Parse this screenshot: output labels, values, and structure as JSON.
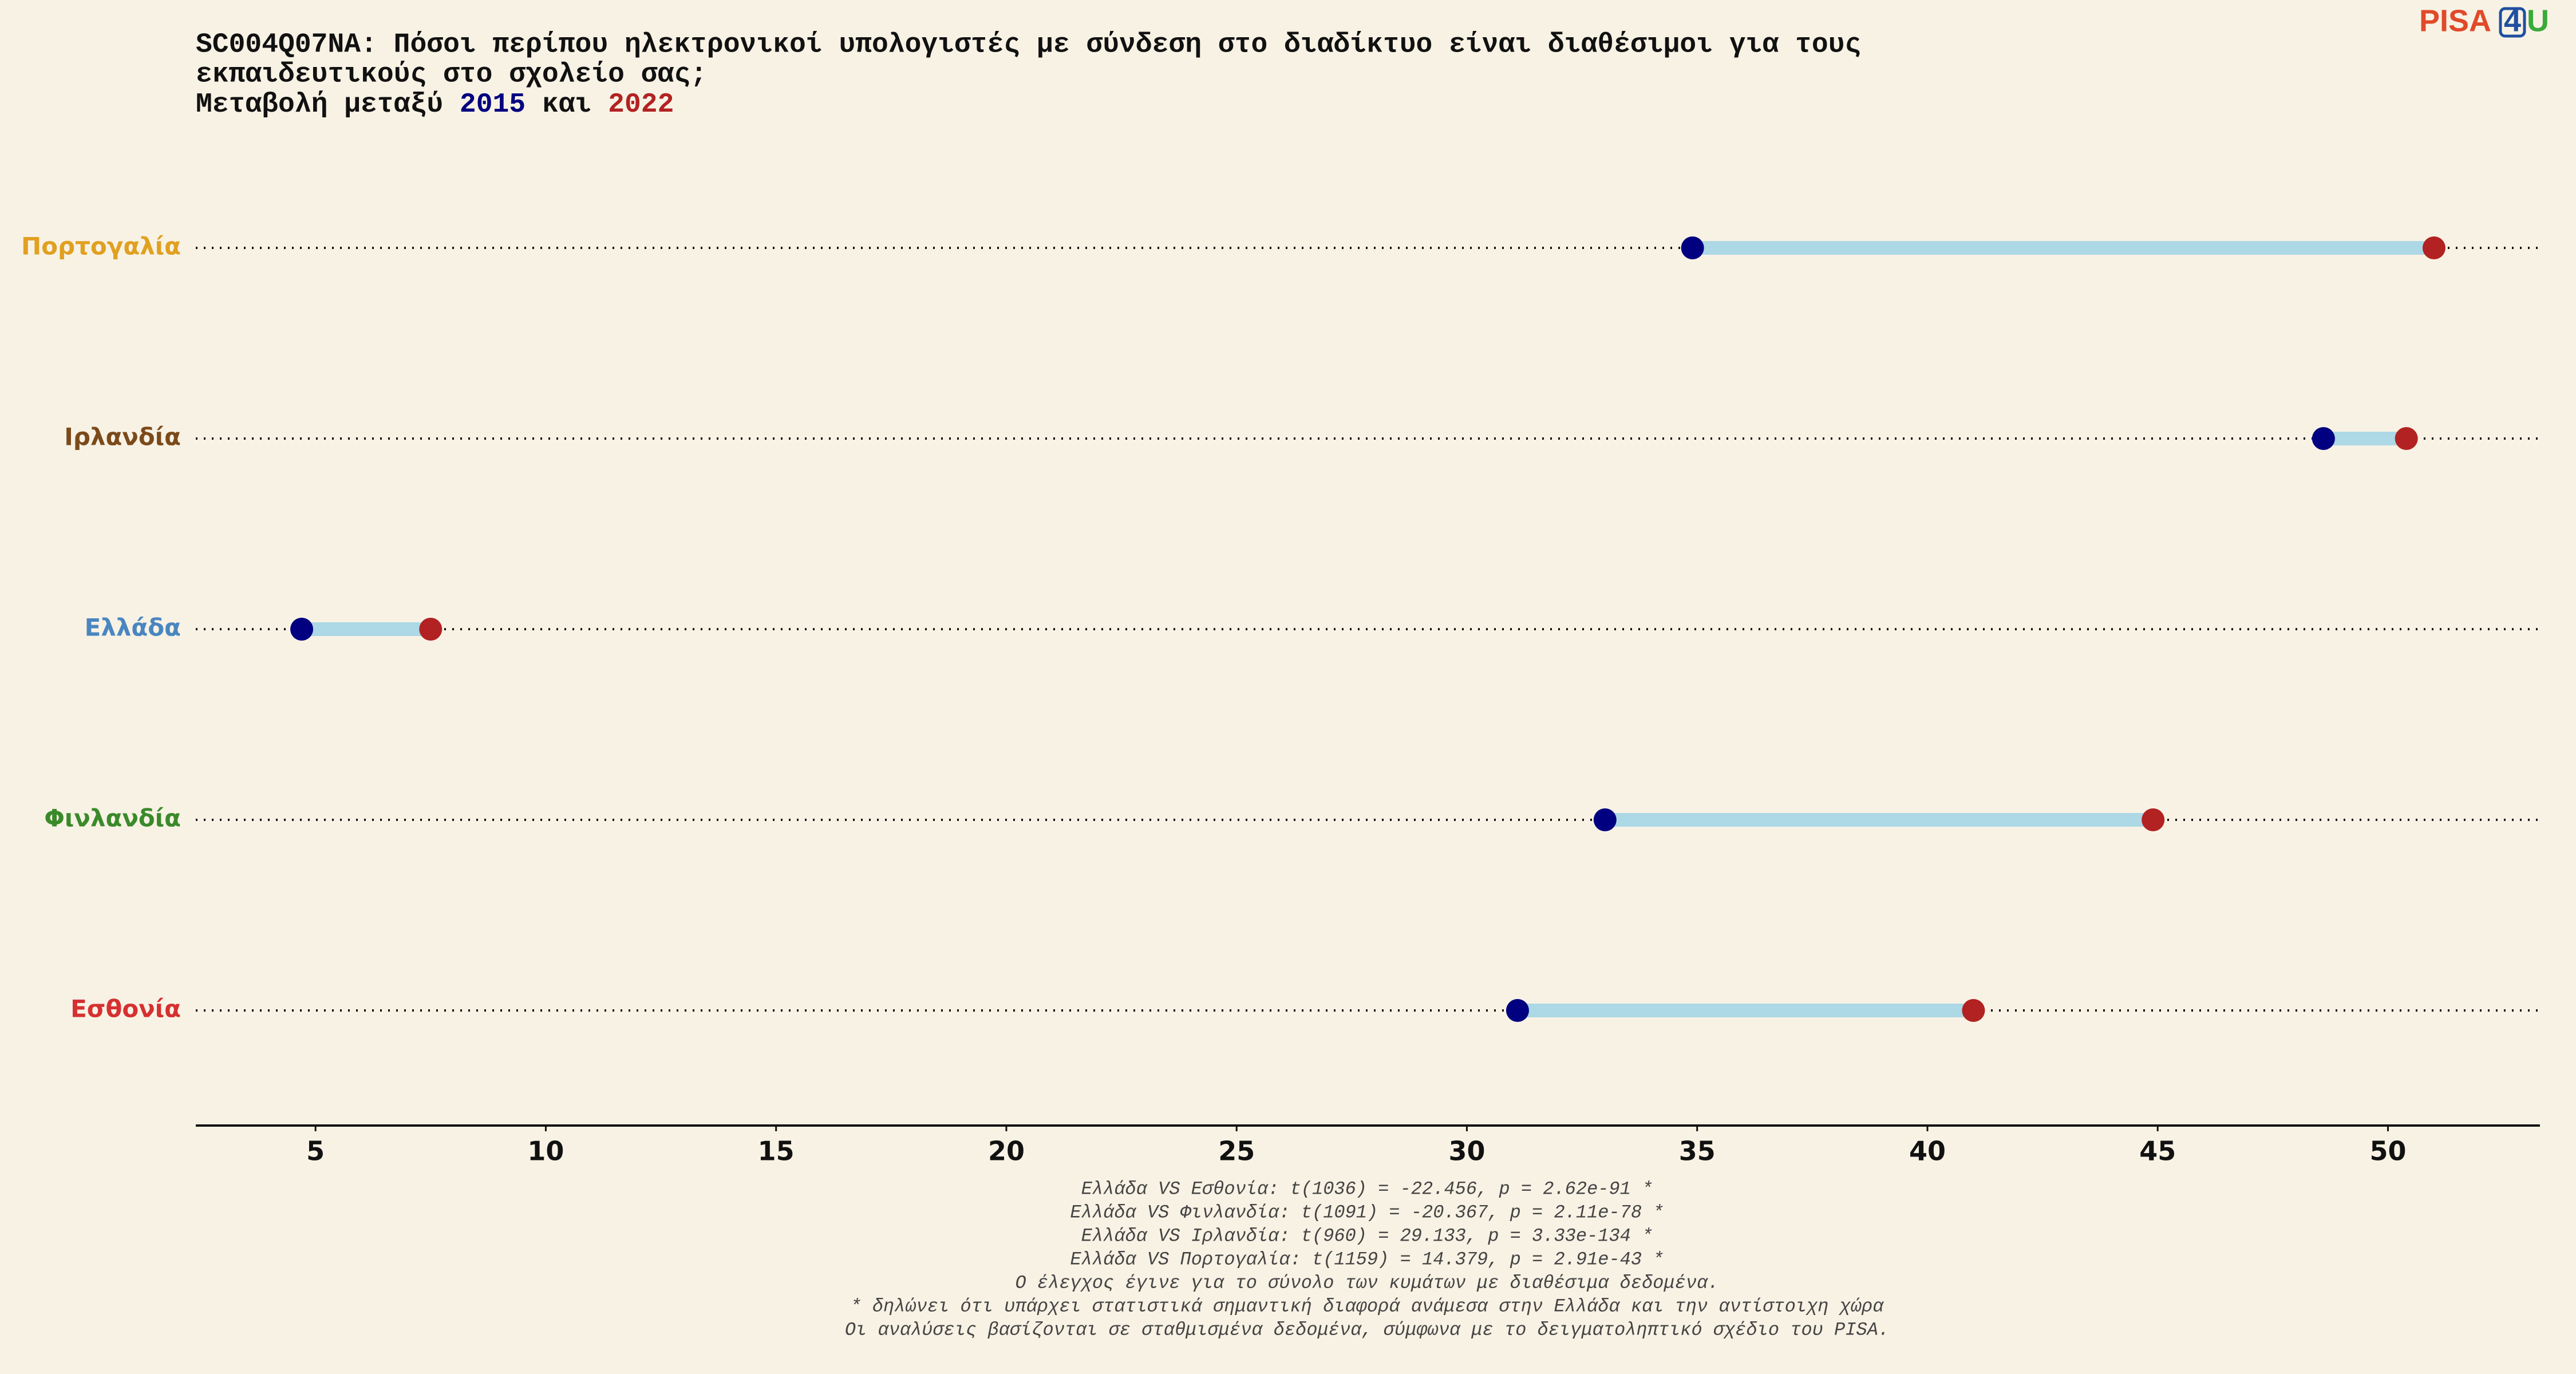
{
  "chart_data": {
    "type": "dumbbell",
    "title_lines": [
      "SC004Q07NA: Πόσοι περίπου ηλεκτρονικοί υπολογιστές με σύνδεση στο διαδίκτυο είναι διαθέσιμοι για τους",
      "εκπαιδευτικούς στο σχολείο σας;"
    ],
    "subtitle_parts": [
      "Μεταβολή μεταξύ",
      "και"
    ],
    "categories": [
      "Πορτογαλία",
      "Ιρλανδία",
      "Ελλάδα",
      "Φινλανδία",
      "Εσθονία"
    ],
    "category_colors": [
      "#e0a020",
      "#7b4a1a",
      "#4a86c0",
      "#3a8a2a",
      "#d63030"
    ],
    "series": [
      {
        "name": "2015",
        "color": "#000080",
        "values": [
          34.9,
          48.6,
          4.7,
          33.0,
          31.1
        ]
      },
      {
        "name": "2022",
        "color": "#b22222",
        "values": [
          51.0,
          50.4,
          7.5,
          44.9,
          41.0
        ]
      }
    ],
    "connector_color": "#add8e6",
    "xlim": [
      2.4,
      53.3
    ],
    "xticks": [
      5,
      10,
      15,
      20,
      25,
      30,
      35,
      40,
      45,
      50
    ],
    "footnotes": [
      "Ελλάδα VS Εσθονία: t(1036) = -22.456, p = 2.62e-91 *",
      "Ελλάδα VS Φινλανδία: t(1091) = -20.367, p = 2.11e-78 *",
      "Ελλάδα VS Ιρλανδία: t(960) = 29.133, p = 3.33e-134 *",
      "Ελλάδα VS Πορτογαλία: t(1159) = 14.379, p = 2.91e-43 *",
      "Ο έλεγχος έγινε για το σύνολο των κυμάτων με διαθέσιμα δεδομένα.",
      "* δηλώνει ότι υπάρχει στατιστικά σημαντική διαφορά ανάμεσα στην Ελλάδα και την αντίστοιχη χώρα",
      "Οι αναλύσεις βασίζονται σε σταθμισμένα δεδομένα, σύμφωνα με το δειγματοληπτικό σχέδιο του PISA."
    ],
    "logo": [
      "PISA",
      "4",
      "U"
    ]
  }
}
